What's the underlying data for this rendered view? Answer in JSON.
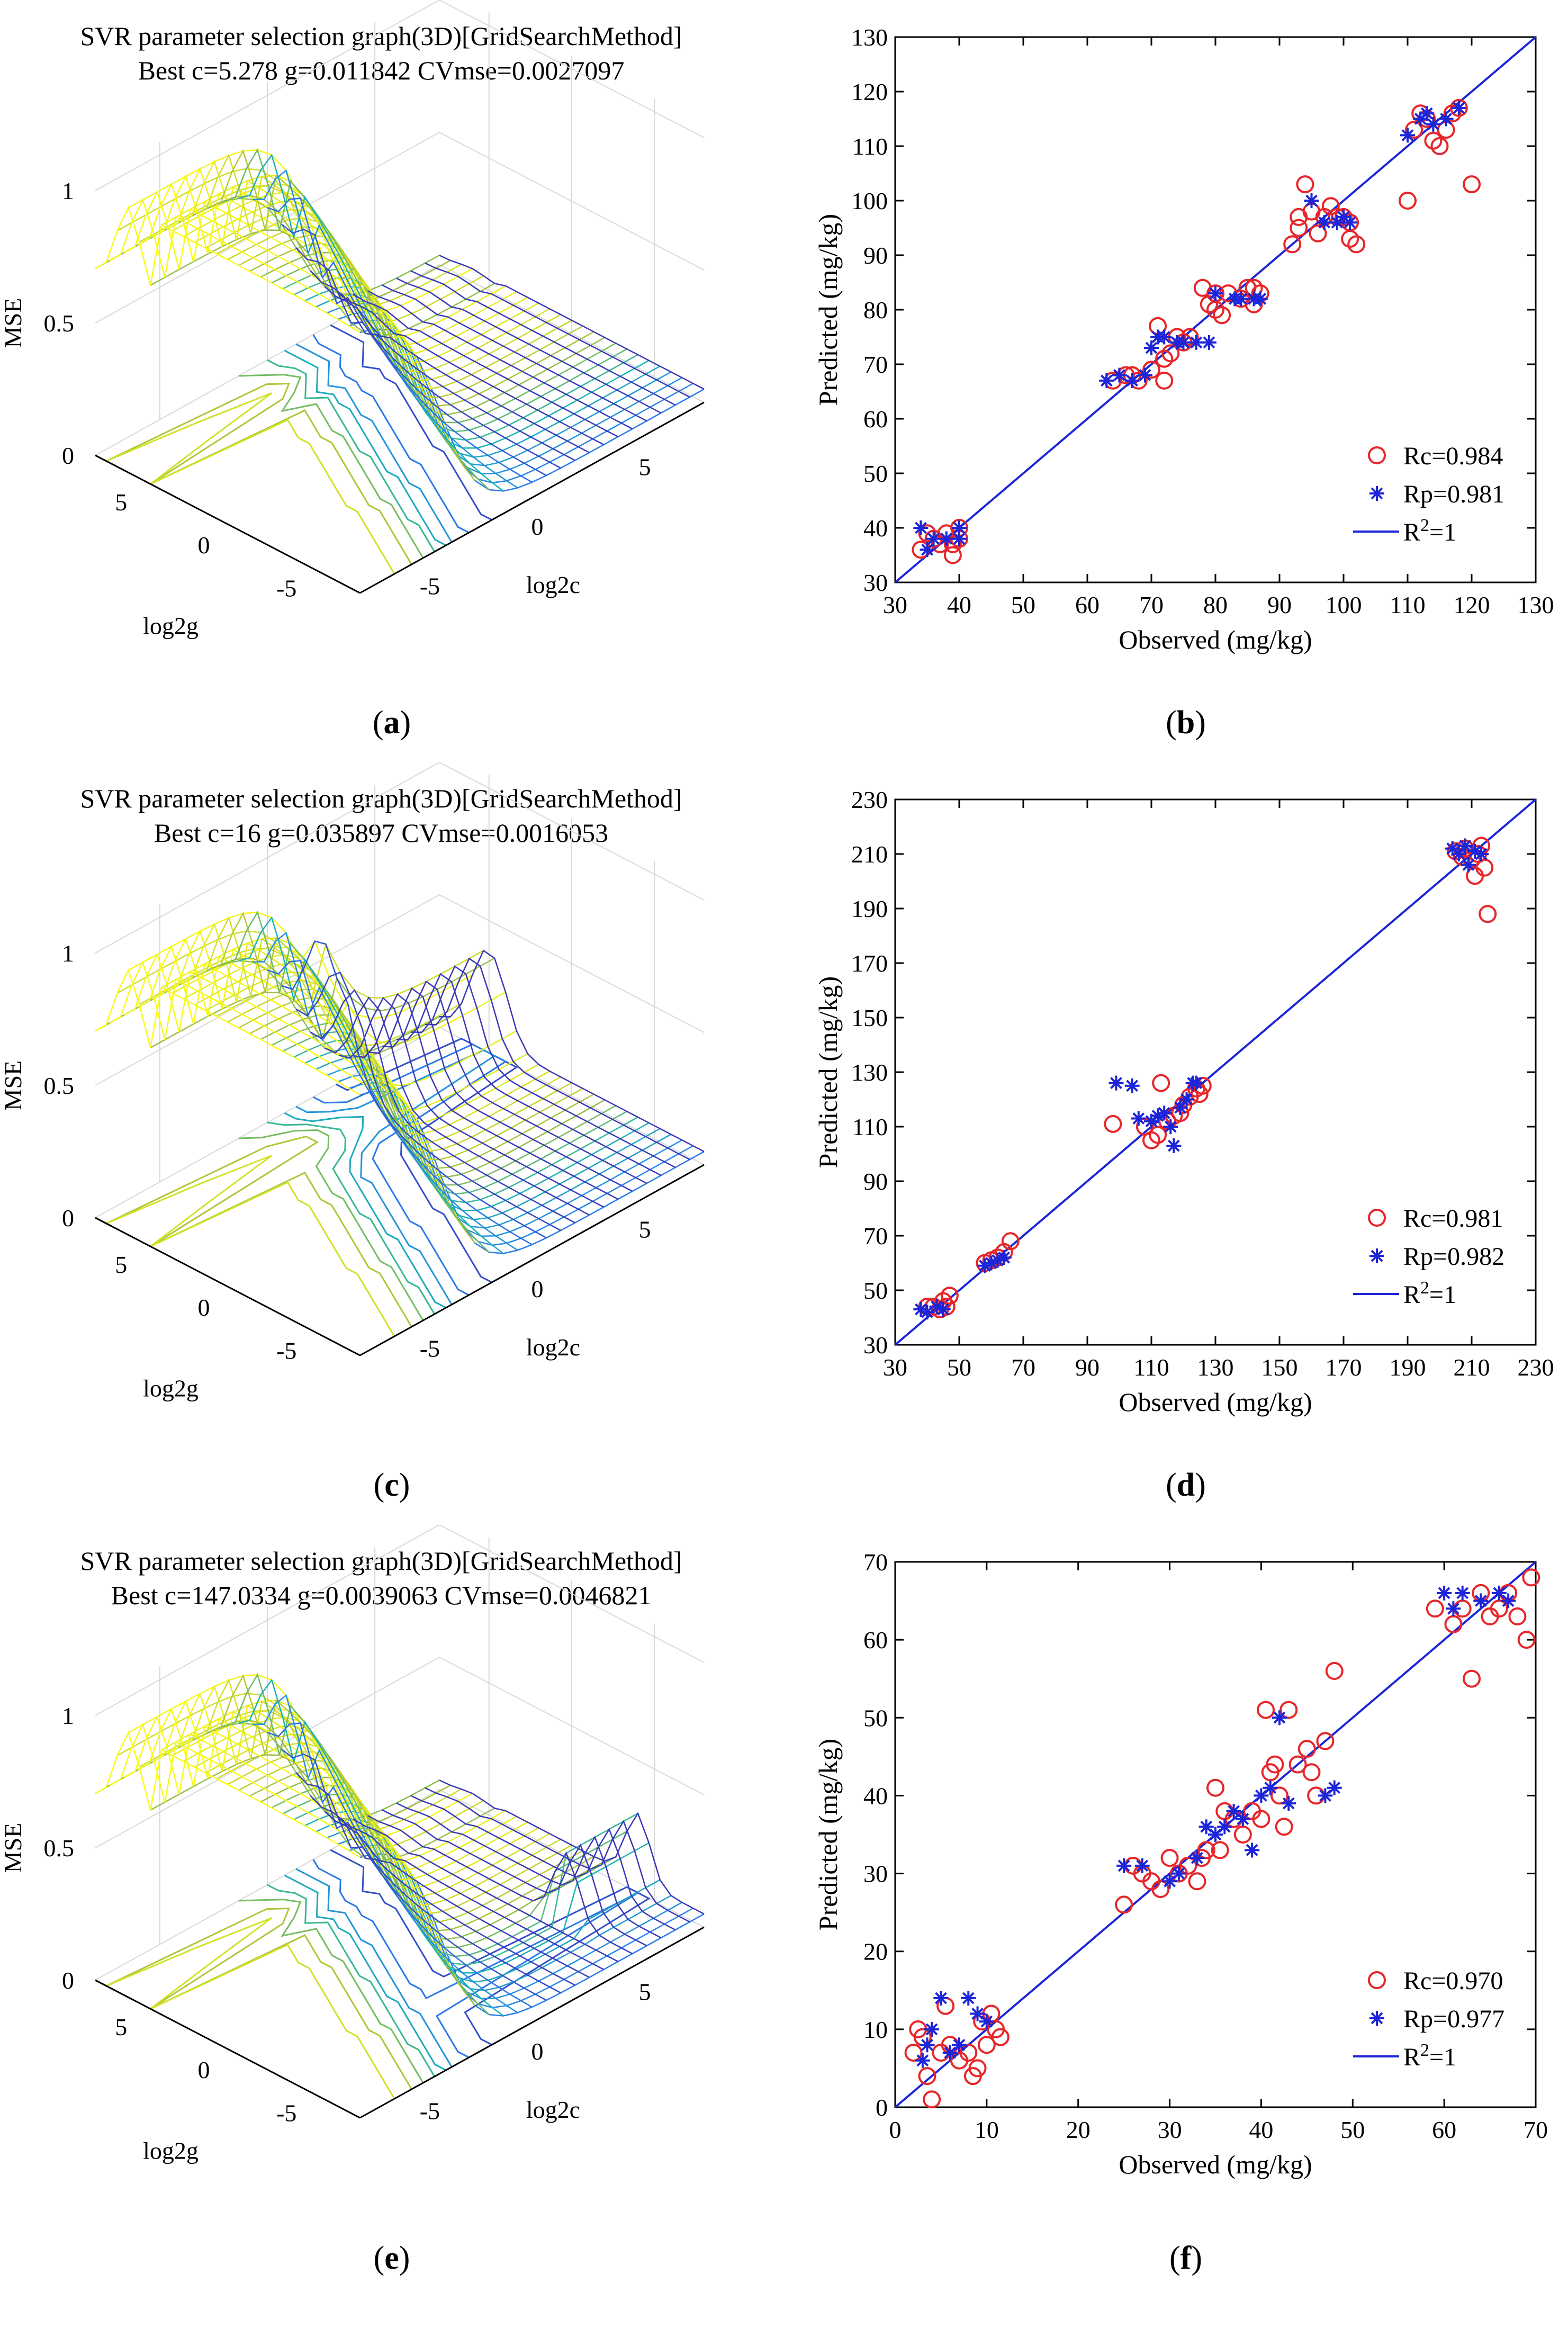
{
  "surface_panels": [
    {
      "id": "a",
      "caption": "a",
      "title": "SVR parameter selection graph(3D)[GridSearchMethod]",
      "subtitle": "Best c=5.278 g=0.011842 CVmse=0.0027097",
      "zlabel": "MSE",
      "xlabel": "log2g",
      "ylabel": "log2c",
      "z_ticks": [
        "1",
        "0.5",
        "0"
      ],
      "g_ticks": [
        "5",
        "0",
        "-5"
      ],
      "c_ticks": [
        "-5",
        "0",
        "5"
      ]
    },
    {
      "id": "c",
      "caption": "c",
      "title": "SVR parameter selection graph(3D)[GridSearchMethod]",
      "subtitle": "Best c=16 g=0.035897 CVmse=0.0016053",
      "zlabel": "MSE",
      "xlabel": "log2g",
      "ylabel": "log2c",
      "z_ticks": [
        "1",
        "0.5",
        "0"
      ],
      "g_ticks": [
        "5",
        "0",
        "-5"
      ],
      "c_ticks": [
        "-5",
        "0",
        "5"
      ]
    },
    {
      "id": "e",
      "caption": "e",
      "title": "SVR parameter selection graph(3D)[GridSearchMethod]",
      "subtitle": "Best c=147.0334 g=0.0039063 CVmse=0.0046821",
      "zlabel": "MSE",
      "xlabel": "log2g",
      "ylabel": "log2c",
      "z_ticks": [
        "1",
        "0.5",
        "0"
      ],
      "g_ticks": [
        "5",
        "0",
        "-5"
      ],
      "c_ticks": [
        "-5",
        "0",
        "5"
      ]
    }
  ],
  "chart_data": [
    {
      "id": "b",
      "type": "scatter",
      "caption": "b",
      "xlabel": "Observed (mg/kg)",
      "ylabel": "Predicted (mg/kg)",
      "xlim": [
        30,
        130
      ],
      "ylim": [
        30,
        130
      ],
      "xticks": [
        30,
        40,
        50,
        60,
        70,
        80,
        90,
        100,
        110,
        120,
        130
      ],
      "yticks": [
        30,
        40,
        50,
        60,
        70,
        80,
        90,
        100,
        110,
        120,
        130
      ],
      "legend": {
        "rc": "Rc=0.984",
        "rp": "Rp=0.981",
        "line_prefix": "R",
        "line_sup": "2",
        "line_suffix": "=1"
      },
      "series": [
        {
          "name": "Rc",
          "marker": "circle",
          "color": "#e8262a",
          "points": [
            [
              34,
              36
            ],
            [
              35,
              39
            ],
            [
              36,
              38
            ],
            [
              37,
              37
            ],
            [
              38,
              39
            ],
            [
              39,
              37
            ],
            [
              39,
              35
            ],
            [
              40,
              38
            ],
            [
              40,
              40
            ],
            [
              64,
              67
            ],
            [
              66,
              68
            ],
            [
              67,
              68
            ],
            [
              68,
              67
            ],
            [
              70,
              69
            ],
            [
              71,
              77
            ],
            [
              72,
              67
            ],
            [
              72,
              71
            ],
            [
              73,
              72
            ],
            [
              74,
              75
            ],
            [
              75,
              74
            ],
            [
              76,
              75
            ],
            [
              78,
              84
            ],
            [
              79,
              81
            ],
            [
              80,
              83
            ],
            [
              80,
              80
            ],
            [
              81,
              79
            ],
            [
              82,
              83
            ],
            [
              84,
              82
            ],
            [
              85,
              84
            ],
            [
              86,
              81
            ],
            [
              86,
              84
            ],
            [
              87,
              83
            ],
            [
              92,
              92
            ],
            [
              93,
              95
            ],
            [
              93,
              97
            ],
            [
              94,
              103
            ],
            [
              95,
              98
            ],
            [
              96,
              94
            ],
            [
              97,
              97
            ],
            [
              98,
              99
            ],
            [
              99,
              97
            ],
            [
              100,
              97
            ],
            [
              101,
              96
            ],
            [
              101,
              93
            ],
            [
              102,
              92
            ],
            [
              110,
              100
            ],
            [
              111,
              113
            ],
            [
              112,
              116
            ],
            [
              113,
              115
            ],
            [
              114,
              111
            ],
            [
              115,
              110
            ],
            [
              116,
              113
            ],
            [
              117,
              116
            ],
            [
              118,
              117
            ],
            [
              120,
              103
            ]
          ]
        },
        {
          "name": "Rp",
          "marker": "star",
          "color": "#1c25d8",
          "points": [
            [
              34,
              40
            ],
            [
              35,
              36
            ],
            [
              36,
              38
            ],
            [
              38,
              38
            ],
            [
              40,
              40
            ],
            [
              40,
              38
            ],
            [
              63,
              67
            ],
            [
              65,
              68
            ],
            [
              67,
              67
            ],
            [
              69,
              68
            ],
            [
              70,
              73
            ],
            [
              71,
              75
            ],
            [
              72,
              75
            ],
            [
              74,
              74
            ],
            [
              75,
              74
            ],
            [
              77,
              74
            ],
            [
              79,
              74
            ],
            [
              80,
              83
            ],
            [
              83,
              82
            ],
            [
              84,
              82
            ],
            [
              86,
              82
            ],
            [
              87,
              82
            ],
            [
              95,
              100
            ],
            [
              97,
              96
            ],
            [
              99,
              96
            ],
            [
              100,
              97
            ],
            [
              101,
              96
            ],
            [
              110,
              112
            ],
            [
              112,
              115
            ],
            [
              113,
              116
            ],
            [
              114,
              114
            ],
            [
              116,
              115
            ],
            [
              118,
              117
            ]
          ]
        }
      ]
    },
    {
      "id": "d",
      "type": "scatter",
      "caption": "d",
      "xlabel": "Observed (mg/kg)",
      "ylabel": "Predicted (mg/kg)",
      "xlim": [
        30,
        230
      ],
      "ylim": [
        30,
        230
      ],
      "xticks": [
        30,
        50,
        70,
        90,
        110,
        130,
        150,
        170,
        190,
        210,
        230
      ],
      "yticks": [
        30,
        50,
        70,
        90,
        110,
        130,
        150,
        170,
        190,
        210,
        230
      ],
      "legend": {
        "rc": "Rc=0.981",
        "rp": "Rp=0.982",
        "line_prefix": "R",
        "line_sup": "2",
        "line_suffix": "=1"
      },
      "series": [
        {
          "name": "Rc",
          "marker": "circle",
          "color": "#e8262a",
          "points": [
            [
              40,
              44
            ],
            [
              42,
              44
            ],
            [
              44,
              43
            ],
            [
              45,
              46
            ],
            [
              46,
              44
            ],
            [
              47,
              48
            ],
            [
              58,
              60
            ],
            [
              60,
              61
            ],
            [
              62,
              62
            ],
            [
              64,
              64
            ],
            [
              66,
              68
            ],
            [
              98,
              111
            ],
            [
              108,
              110
            ],
            [
              110,
              105
            ],
            [
              112,
              107
            ],
            [
              113,
              126
            ],
            [
              115,
              112
            ],
            [
              117,
              114
            ],
            [
              119,
              115
            ],
            [
              120,
              118
            ],
            [
              122,
              121
            ],
            [
              124,
              124
            ],
            [
              125,
              122
            ],
            [
              126,
              125
            ],
            [
              205,
              211
            ],
            [
              207,
              209
            ],
            [
              208,
              212
            ],
            [
              210,
              208
            ],
            [
              211,
              202
            ],
            [
              212,
              210
            ],
            [
              213,
              213
            ],
            [
              214,
              205
            ],
            [
              215,
              188
            ]
          ]
        },
        {
          "name": "Rp",
          "marker": "star",
          "color": "#1c25d8",
          "points": [
            [
              38,
              43
            ],
            [
              40,
              42
            ],
            [
              43,
              44
            ],
            [
              45,
              43
            ],
            [
              58,
              59
            ],
            [
              60,
              60
            ],
            [
              62,
              61
            ],
            [
              64,
              62
            ],
            [
              99,
              126
            ],
            [
              104,
              125
            ],
            [
              106,
              113
            ],
            [
              110,
              112
            ],
            [
              112,
              114
            ],
            [
              114,
              115
            ],
            [
              116,
              110
            ],
            [
              117,
              103
            ],
            [
              119,
              117
            ],
            [
              121,
              120
            ],
            [
              123,
              126
            ],
            [
              124,
              126
            ],
            [
              204,
              212
            ],
            [
              206,
              210
            ],
            [
              208,
              213
            ],
            [
              209,
              206
            ],
            [
              211,
              211
            ],
            [
              213,
              210
            ]
          ]
        }
      ]
    },
    {
      "id": "f",
      "type": "scatter",
      "caption": "f",
      "xlabel": "Observed (mg/kg)",
      "ylabel": "Predicted (mg/kg)",
      "xlim": [
        0,
        70
      ],
      "ylim": [
        0,
        70
      ],
      "xticks": [
        0,
        10,
        20,
        30,
        40,
        50,
        60,
        70
      ],
      "yticks": [
        0,
        10,
        20,
        30,
        40,
        50,
        60,
        70
      ],
      "legend": {
        "rc": "Rc=0.970",
        "rp": "Rp=0.977",
        "line_prefix": "R",
        "line_sup": "2",
        "line_suffix": "=1"
      },
      "series": [
        {
          "name": "Rc",
          "marker": "circle",
          "color": "#e8262a",
          "points": [
            [
              2,
              7
            ],
            [
              2.5,
              10
            ],
            [
              3,
              9
            ],
            [
              3.5,
              4
            ],
            [
              4,
              1
            ],
            [
              5,
              7
            ],
            [
              5.5,
              13
            ],
            [
              6,
              8
            ],
            [
              7,
              6
            ],
            [
              8,
              7
            ],
            [
              8.5,
              4
            ],
            [
              9,
              5
            ],
            [
              9.5,
              11
            ],
            [
              10,
              8
            ],
            [
              10.5,
              12
            ],
            [
              11,
              10
            ],
            [
              11.5,
              9
            ],
            [
              25,
              26
            ],
            [
              26,
              31
            ],
            [
              27,
              30
            ],
            [
              28,
              29
            ],
            [
              29,
              28
            ],
            [
              30,
              32
            ],
            [
              31,
              30
            ],
            [
              32,
              31
            ],
            [
              33,
              29
            ],
            [
              33.5,
              32
            ],
            [
              34,
              33
            ],
            [
              35,
              41
            ],
            [
              35.5,
              33
            ],
            [
              36,
              38
            ],
            [
              37,
              37
            ],
            [
              38,
              35
            ],
            [
              39,
              38
            ],
            [
              40,
              37
            ],
            [
              40.5,
              51
            ],
            [
              41,
              43
            ],
            [
              41.5,
              44
            ],
            [
              42,
              40
            ],
            [
              42.5,
              36
            ],
            [
              43,
              51
            ],
            [
              44,
              44
            ],
            [
              45,
              46
            ],
            [
              45.5,
              43
            ],
            [
              46,
              40
            ],
            [
              47,
              47
            ],
            [
              48,
              56
            ],
            [
              59,
              64
            ],
            [
              61,
              62
            ],
            [
              62,
              64
            ],
            [
              63,
              55
            ],
            [
              64,
              66
            ],
            [
              65,
              63
            ],
            [
              66,
              64
            ],
            [
              67,
              66
            ],
            [
              68,
              63
            ],
            [
              69,
              60
            ],
            [
              69.5,
              68
            ]
          ]
        },
        {
          "name": "Rp",
          "marker": "star",
          "color": "#1c25d8",
          "points": [
            [
              3,
              6
            ],
            [
              3.5,
              8
            ],
            [
              4,
              10
            ],
            [
              5,
              14
            ],
            [
              6,
              7
            ],
            [
              7,
              8
            ],
            [
              8,
              14
            ],
            [
              9,
              12
            ],
            [
              10,
              11
            ],
            [
              25,
              31
            ],
            [
              27,
              31
            ],
            [
              30,
              29
            ],
            [
              31,
              30
            ],
            [
              33,
              32
            ],
            [
              34,
              36
            ],
            [
              35,
              35
            ],
            [
              36,
              36
            ],
            [
              37,
              38
            ],
            [
              38,
              37
            ],
            [
              39,
              33
            ],
            [
              40,
              40
            ],
            [
              41,
              41
            ],
            [
              42,
              50
            ],
            [
              43,
              39
            ],
            [
              47,
              40
            ],
            [
              48,
              41
            ],
            [
              60,
              66
            ],
            [
              61,
              64
            ],
            [
              62,
              66
            ],
            [
              64,
              65
            ],
            [
              66,
              66
            ],
            [
              67,
              65
            ]
          ]
        }
      ]
    }
  ]
}
